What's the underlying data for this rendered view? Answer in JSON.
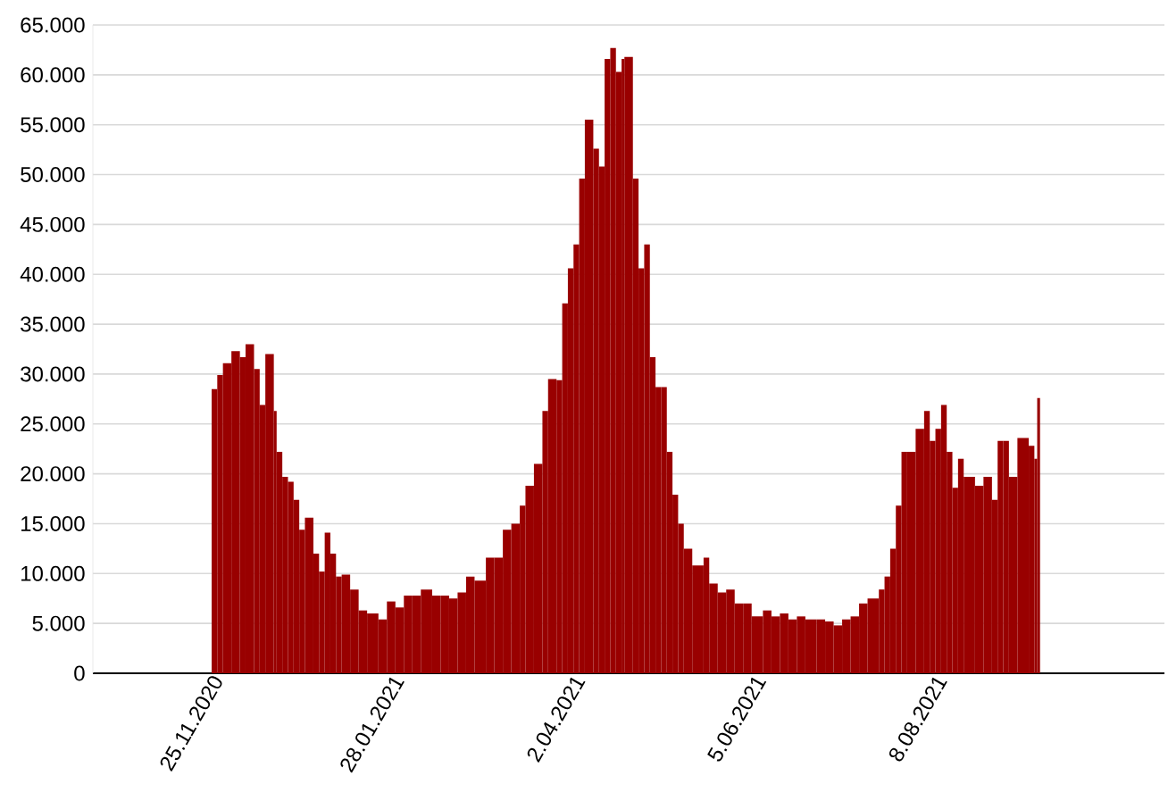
{
  "chart_data": {
    "type": "bar",
    "color": "#990000",
    "grid": "y",
    "x": [
      "2020-11-25",
      "2020-11-27",
      "2020-11-29",
      "2020-12-02",
      "2020-12-05",
      "2020-12-07",
      "2020-12-10",
      "2020-12-12",
      "2020-12-14",
      "2020-12-17",
      "2020-12-18",
      "2020-12-20",
      "2020-12-22",
      "2020-12-24",
      "2020-12-26",
      "2020-12-28",
      "2020-12-31",
      "2021-01-02",
      "2021-01-04",
      "2021-01-06",
      "2021-01-08",
      "2021-01-10",
      "2021-01-13",
      "2021-01-16",
      "2021-01-19",
      "2021-01-23",
      "2021-01-26",
      "2021-01-29",
      "2021-02-01",
      "2021-02-04",
      "2021-02-07",
      "2021-02-11",
      "2021-02-14",
      "2021-02-17",
      "2021-02-20",
      "2021-02-23",
      "2021-02-26",
      "2021-03-02",
      "2021-03-05",
      "2021-03-08",
      "2021-03-11",
      "2021-03-14",
      "2021-03-16",
      "2021-03-19",
      "2021-03-22",
      "2021-03-24",
      "2021-03-27",
      "2021-03-29",
      "2021-03-31",
      "2021-04-02",
      "2021-04-04",
      "2021-04-06",
      "2021-04-09",
      "2021-04-11",
      "2021-04-13",
      "2021-04-15",
      "2021-04-17",
      "2021-04-19",
      "2021-04-20",
      "2021-04-23",
      "2021-04-25",
      "2021-04-27",
      "2021-04-29",
      "2021-05-01",
      "2021-05-03",
      "2021-05-05",
      "2021-05-07",
      "2021-05-09",
      "2021-05-11",
      "2021-05-14",
      "2021-05-18",
      "2021-05-20",
      "2021-05-23",
      "2021-05-26",
      "2021-05-29",
      "2021-06-01",
      "2021-06-04",
      "2021-06-08",
      "2021-06-11",
      "2021-06-14",
      "2021-06-17",
      "2021-06-20",
      "2021-06-23",
      "2021-06-27",
      "2021-06-30",
      "2021-07-03",
      "2021-07-06",
      "2021-07-09",
      "2021-07-12",
      "2021-07-15",
      "2021-07-19",
      "2021-07-21",
      "2021-07-23",
      "2021-07-25",
      "2021-07-27",
      "2021-07-29",
      "2021-08-01",
      "2021-08-04",
      "2021-08-06",
      "2021-08-08",
      "2021-08-10",
      "2021-08-12",
      "2021-08-14",
      "2021-08-16",
      "2021-08-18",
      "2021-08-22",
      "2021-08-25",
      "2021-08-28",
      "2021-08-30",
      "2021-09-01",
      "2021-09-03",
      "2021-09-06",
      "2021-09-10",
      "2021-09-12",
      "2021-09-13"
    ],
    "values": [
      28500,
      29900,
      31100,
      32300,
      31700,
      33000,
      30500,
      26900,
      32000,
      26300,
      22200,
      19700,
      19200,
      17400,
      14400,
      15600,
      12000,
      10200,
      14100,
      12000,
      9700,
      9900,
      8400,
      6300,
      6000,
      5400,
      7200,
      6600,
      7800,
      7800,
      8400,
      7800,
      7800,
      7500,
      8100,
      9700,
      9300,
      11600,
      11600,
      14400,
      15000,
      16800,
      18800,
      21000,
      26300,
      29500,
      29400,
      37100,
      40600,
      43000,
      49600,
      55500,
      52600,
      50800,
      61600,
      62700,
      60300,
      61600,
      61800,
      49600,
      40600,
      43000,
      31700,
      28700,
      28700,
      22200,
      17900,
      15000,
      12500,
      10800,
      11600,
      9000,
      8100,
      8400,
      7000,
      7000,
      5700,
      6300,
      5700,
      6000,
      5400,
      5700,
      5400,
      5400,
      5200,
      4800,
      5400,
      5700,
      7000,
      7500,
      8400,
      9700,
      12500,
      16800,
      22200,
      22200,
      24500,
      26300,
      23300,
      24500,
      26900,
      22200,
      18600,
      21500,
      19700,
      18800,
      19700,
      17400,
      23300,
      23300,
      19700,
      23600,
      22800,
      21500,
      27600
    ],
    "xlim": [
      "2020-10-14",
      "2021-10-28"
    ],
    "xticks": [
      {
        "value": "2020-11-25",
        "label": "25.11.2020"
      },
      {
        "value": "2021-01-28",
        "label": "28.01.2021"
      },
      {
        "value": "2021-04-02",
        "label": "2.04.2021"
      },
      {
        "value": "2021-06-05",
        "label": "5.06.2021"
      },
      {
        "value": "2021-08-08",
        "label": "8.08.2021"
      }
    ],
    "ylim": [
      0,
      65000
    ],
    "yticks": [
      0,
      {
        "value": 5000,
        "label": "5.000"
      },
      {
        "value": 10000,
        "label": "10.000"
      },
      {
        "value": 15000,
        "label": "15.000"
      },
      {
        "value": 20000,
        "label": "20.000"
      },
      {
        "value": 25000,
        "label": "25.000"
      },
      {
        "value": 30000,
        "label": "30.000"
      },
      {
        "value": 35000,
        "label": "35.000"
      },
      {
        "value": 40000,
        "label": "40.000"
      },
      {
        "value": 45000,
        "label": "45.000"
      },
      {
        "value": 50000,
        "label": "50.000"
      },
      {
        "value": 55000,
        "label": "55.000"
      },
      {
        "value": 60000,
        "label": "60.000"
      },
      {
        "value": 65000,
        "label": "65.000"
      }
    ]
  }
}
